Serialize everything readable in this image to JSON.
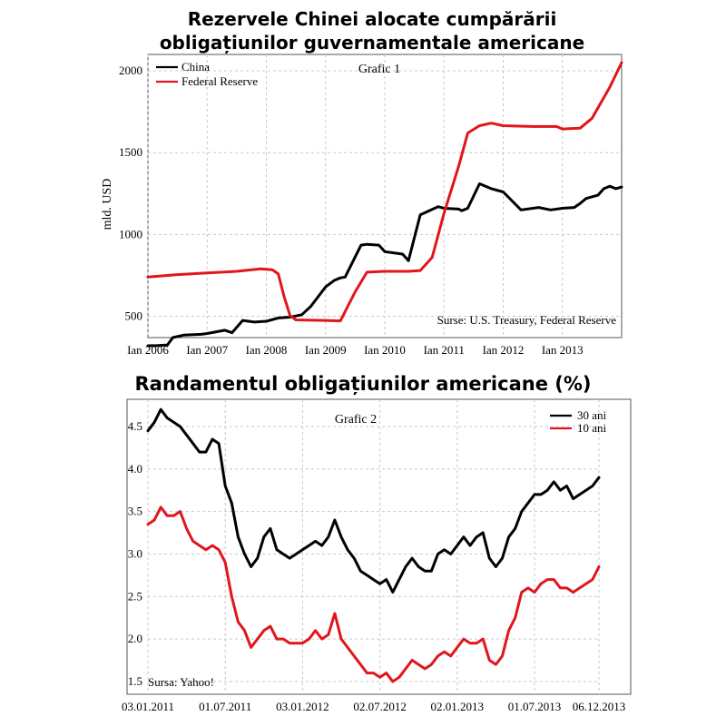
{
  "charts": [
    {
      "title_line1": "Rezervele Chinei alocate cumpărării",
      "title_line2": "obligațiunilor guvernamentale americane",
      "chart_label": "Grafic 1",
      "ylabel": "mld. USD",
      "source": "Surse: U.S. Treasury, Federal Reserve",
      "colors": {
        "china": "#000000",
        "fed": "#e0161c"
      },
      "chart_data": {
        "type": "line",
        "ylim": [
          370,
          2100
        ],
        "xlim": [
          2006.0,
          2014.0
        ],
        "yticks": [
          500,
          1000,
          1500,
          2000
        ],
        "xtick_labels": [
          "Ian 2006",
          "Ian 2007",
          "Ian 2008",
          "Ian 2009",
          "Ian 2010",
          "Ian 2011",
          "Ian 2012",
          "Ian 2013"
        ],
        "grid": true,
        "legend": "top-left",
        "series": [
          {
            "name": "China",
            "x": [
              2006.0,
              2006.17,
              2006.33,
              2006.42,
              2006.6,
              2006.9,
              2007.0,
              2007.3,
              2007.42,
              2007.6,
              2007.8,
              2008.0,
              2008.2,
              2008.4,
              2008.6,
              2008.75,
              2009.0,
              2009.15,
              2009.25,
              2009.33,
              2009.6,
              2009.7,
              2009.9,
              2010.0,
              2010.3,
              2010.4,
              2010.6,
              2010.9,
              2011.0,
              2011.25,
              2011.3,
              2011.4,
              2011.6,
              2011.8,
              2012.0,
              2012.3,
              2012.6,
              2012.8,
              2013.0,
              2013.2,
              2013.3,
              2013.4,
              2013.6,
              2013.7,
              2013.8,
              2013.9,
              2014.0
            ],
            "y": [
              320,
              322,
              325,
              370,
              385,
              390,
              395,
              415,
              400,
              475,
              465,
              470,
              490,
              495,
              510,
              560,
              680,
              720,
              735,
              740,
              935,
              940,
              935,
              895,
              880,
              840,
              1120,
              1170,
              1160,
              1155,
              1145,
              1160,
              1310,
              1280,
              1260,
              1150,
              1165,
              1150,
              1160,
              1165,
              1190,
              1220,
              1240,
              1280,
              1295,
              1280,
              1290
            ]
          },
          {
            "name": "Federal Reserve",
            "x": [
              2006.0,
              2006.5,
              2007.0,
              2007.5,
              2007.9,
              2008.1,
              2008.2,
              2008.3,
              2008.4,
              2008.5,
              2009.0,
              2009.25,
              2009.5,
              2009.7,
              2010.0,
              2010.4,
              2010.6,
              2010.8,
              2011.0,
              2011.25,
              2011.4,
              2011.6,
              2011.8,
              2012.0,
              2012.5,
              2012.9,
              2013.0,
              2013.3,
              2013.5,
              2013.8,
              2014.0
            ],
            "y": [
              740,
              755,
              765,
              775,
              790,
              785,
              760,
              620,
              505,
              478,
              475,
              472,
              650,
              770,
              775,
              775,
              780,
              860,
              1130,
              1420,
              1620,
              1665,
              1680,
              1665,
              1660,
              1660,
              1645,
              1650,
              1710,
              1900,
              2050
            ]
          }
        ]
      }
    },
    {
      "title": "Randamentul obligațiunilor americane (%)",
      "chart_label": "Grafic 2",
      "source": "Sursa: Yahoo!",
      "colors": {
        "y30": "#000000",
        "y10": "#e0161c"
      },
      "chart_data": {
        "type": "line",
        "ylim": [
          1.35,
          4.82
        ],
        "xlim": [
          0,
          35
        ],
        "yticks": [
          1.5,
          2.0,
          2.5,
          3.0,
          3.5,
          4.0,
          4.5
        ],
        "xtick_labels": [
          "03.01.2011",
          "01.07.2011",
          "03.01.2012",
          "02.07.2012",
          "02.01.2013",
          "01.07.2013",
          "06.12.2013"
        ],
        "xtick_positions": [
          0,
          6,
          12,
          18,
          24,
          30,
          35
        ],
        "grid": true,
        "legend": "top-right",
        "series": [
          {
            "name": "30 ani",
            "x": [
              0,
              0.5,
              1,
              1.5,
              2,
              2.5,
              3,
              3.5,
              4,
              4.5,
              5,
              5.5,
              6,
              6.5,
              7,
              7.5,
              8,
              8.5,
              9,
              9.5,
              10,
              10.5,
              11,
              11.5,
              12,
              12.5,
              13,
              13.5,
              14,
              14.5,
              15,
              15.5,
              16,
              16.5,
              17,
              17.5,
              18,
              18.5,
              19,
              19.5,
              20,
              20.5,
              21,
              21.5,
              22,
              22.5,
              23,
              23.5,
              24,
              24.5,
              25,
              25.5,
              26,
              26.5,
              27,
              27.5,
              28,
              28.5,
              29,
              29.5,
              30,
              30.5,
              31,
              31.5,
              32,
              32.5,
              33,
              33.5,
              34,
              34.5,
              35
            ],
            "y": [
              4.45,
              4.55,
              4.7,
              4.6,
              4.55,
              4.5,
              4.4,
              4.3,
              4.2,
              4.2,
              4.35,
              4.3,
              3.8,
              3.6,
              3.2,
              3.0,
              2.85,
              2.95,
              3.2,
              3.3,
              3.05,
              3.0,
              2.95,
              3.0,
              3.05,
              3.1,
              3.15,
              3.1,
              3.2,
              3.4,
              3.2,
              3.05,
              2.95,
              2.8,
              2.75,
              2.7,
              2.65,
              2.7,
              2.55,
              2.7,
              2.85,
              2.95,
              2.85,
              2.8,
              2.8,
              3.0,
              3.05,
              3.0,
              3.1,
              3.2,
              3.1,
              3.2,
              3.25,
              2.95,
              2.85,
              2.95,
              3.2,
              3.3,
              3.5,
              3.6,
              3.7,
              3.7,
              3.75,
              3.85,
              3.75,
              3.8,
              3.65,
              3.7,
              3.75,
              3.8,
              3.9
            ]
          },
          {
            "name": "10 ani",
            "x": [
              0,
              0.5,
              1,
              1.5,
              2,
              2.5,
              3,
              3.5,
              4,
              4.5,
              5,
              5.5,
              6,
              6.5,
              7,
              7.5,
              8,
              8.5,
              9,
              9.5,
              10,
              10.5,
              11,
              11.5,
              12,
              12.5,
              13,
              13.5,
              14,
              14.5,
              15,
              15.5,
              16,
              16.5,
              17,
              17.5,
              18,
              18.5,
              19,
              19.5,
              20,
              20.5,
              21,
              21.5,
              22,
              22.5,
              23,
              23.5,
              24,
              24.5,
              25,
              25.5,
              26,
              26.5,
              27,
              27.5,
              28,
              28.5,
              29,
              29.5,
              30,
              30.5,
              31,
              31.5,
              32,
              32.5,
              33,
              33.5,
              34,
              34.5,
              35
            ],
            "y": [
              3.35,
              3.4,
              3.55,
              3.45,
              3.45,
              3.5,
              3.3,
              3.15,
              3.1,
              3.05,
              3.1,
              3.05,
              2.9,
              2.5,
              2.2,
              2.1,
              1.9,
              2.0,
              2.1,
              2.15,
              2.0,
              2.0,
              1.95,
              1.95,
              1.95,
              2.0,
              2.1,
              2.0,
              2.05,
              2.3,
              2.0,
              1.9,
              1.8,
              1.7,
              1.6,
              1.6,
              1.55,
              1.6,
              1.5,
              1.55,
              1.65,
              1.75,
              1.7,
              1.65,
              1.7,
              1.8,
              1.85,
              1.8,
              1.9,
              2.0,
              1.95,
              1.95,
              2.0,
              1.75,
              1.7,
              1.8,
              2.1,
              2.25,
              2.55,
              2.6,
              2.55,
              2.65,
              2.7,
              2.7,
              2.6,
              2.6,
              2.55,
              2.6,
              2.65,
              2.7,
              2.85
            ]
          }
        ]
      }
    }
  ]
}
